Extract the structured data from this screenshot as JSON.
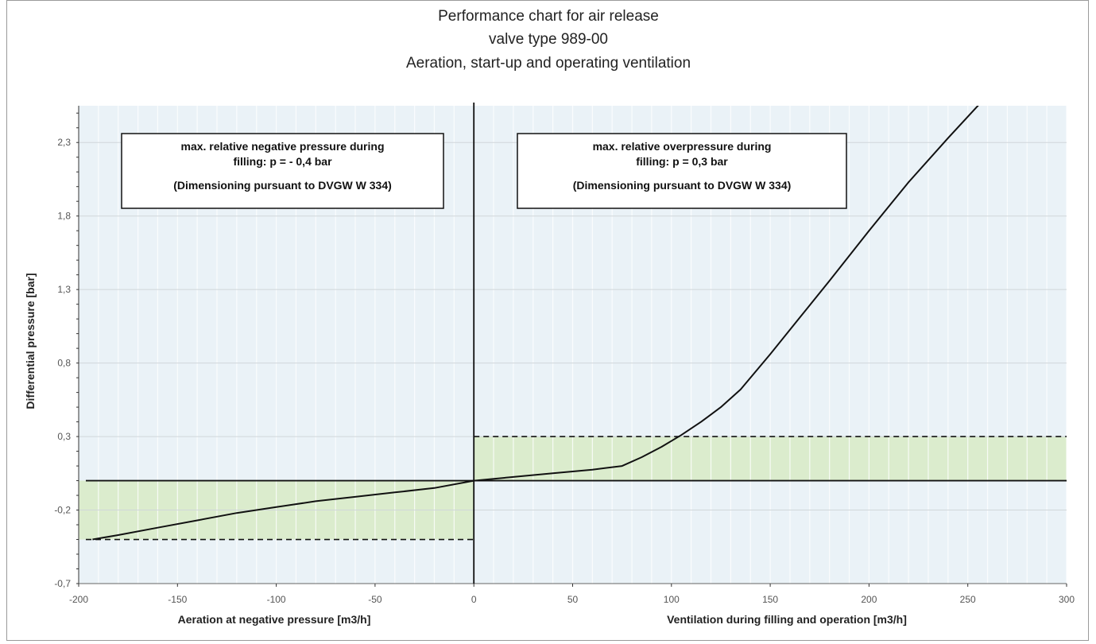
{
  "chart_data": {
    "type": "line",
    "title_lines": [
      "Performance chart for air release",
      "valve type 989-00",
      "Aeration, start-up and operating ventilation"
    ],
    "ylabel": "Differential pressure [bar]",
    "xlabel_left": "Aeration at negative pressure [m3/h]",
    "xlabel_right": "Ventilation during filling and operation [m3/h]",
    "xlim": [
      -200,
      300
    ],
    "ylim": [
      -0.7,
      2.55
    ],
    "x_ticks": [
      -200,
      -150,
      -100,
      -50,
      0,
      50,
      100,
      150,
      200,
      250,
      300
    ],
    "x_tick_labels": [
      "-200",
      "-150",
      "-100",
      "-50",
      "0",
      "50",
      "100",
      "150",
      "200",
      "250",
      "300"
    ],
    "y_ticks": [
      -0.7,
      -0.2,
      0.3,
      0.8,
      1.3,
      1.8,
      2.3
    ],
    "y_tick_labels": [
      "-0,7",
      "-0,2",
      "0,3",
      "0,8",
      "1,3",
      "1,8",
      "2,3"
    ],
    "grid": true,
    "series": [
      {
        "x": [
          -193,
          -180,
          -160,
          -140,
          -120,
          -100,
          -80,
          -60,
          -40,
          -20,
          0,
          20,
          40,
          60,
          75,
          85,
          95,
          105,
          115,
          125,
          135,
          150,
          165,
          180,
          200,
          220,
          240,
          262
        ],
        "y": [
          -0.4,
          -0.37,
          -0.32,
          -0.27,
          -0.22,
          -0.18,
          -0.14,
          -0.11,
          -0.08,
          -0.05,
          0.0,
          0.025,
          0.05,
          0.075,
          0.1,
          0.16,
          0.23,
          0.31,
          0.4,
          0.5,
          0.62,
          0.86,
          1.11,
          1.36,
          1.7,
          2.03,
          2.33,
          2.65
        ]
      }
    ],
    "limit_lines": [
      {
        "style": "dashed",
        "x": [
          0,
          300
        ],
        "y": 0.3
      },
      {
        "style": "dashed",
        "x": [
          -200,
          0
        ],
        "y": -0.4
      }
    ],
    "bands": [
      {
        "x": [
          0,
          300
        ],
        "y": [
          0,
          0.3
        ],
        "color": "#dbeccd"
      },
      {
        "x": [
          -200,
          0
        ],
        "y": [
          -0.4,
          0
        ],
        "color": "#dbeccd"
      }
    ],
    "background_color": "#eaf2f7",
    "annotations": [
      {
        "lines": [
          "max. relative negative pressure during",
          "filling: p = - 0,4 bar",
          "(Dimensioning pursuant to DVGW W 334)"
        ],
        "anchor_x": -115,
        "anchor_y": 2.2
      },
      {
        "lines": [
          "max. relative overpressure during",
          "filling: p = 0,3 bar",
          "(Dimensioning pursuant to DVGW W 334)"
        ],
        "anchor_x": 90,
        "anchor_y": 2.2
      }
    ]
  }
}
